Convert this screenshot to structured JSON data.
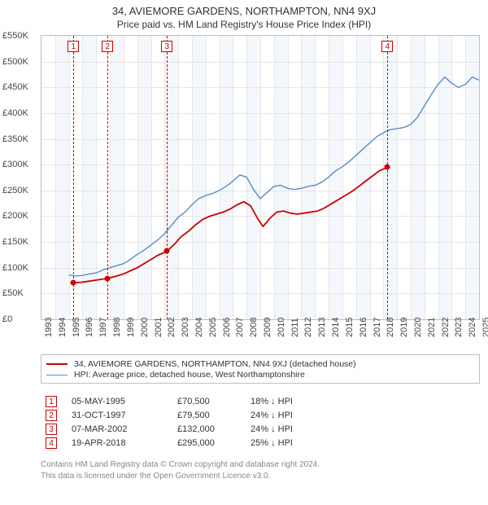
{
  "title": "34, AVIEMORE GARDENS, NORTHAMPTON, NN4 9XJ",
  "subtitle": "Price paid vs. HM Land Registry's House Price Index (HPI)",
  "chart": {
    "type": "line",
    "background_color": "#ffffff",
    "grid_color": "#e6e6e6",
    "band_color": "#f4f7fb",
    "border_color": "#bfbfbf",
    "ylim": [
      0,
      550000
    ],
    "ytick_step": 50000,
    "ytick_labels": [
      "£0",
      "£50K",
      "£100K",
      "£150K",
      "£200K",
      "£250K",
      "£300K",
      "£350K",
      "£400K",
      "£450K",
      "£500K",
      "£550K"
    ],
    "xlim": [
      1993,
      2025
    ],
    "xtick_step": 1,
    "xtick_labels": [
      "1993",
      "1994",
      "1995",
      "1996",
      "1997",
      "1998",
      "1999",
      "2000",
      "2001",
      "2002",
      "2003",
      "2004",
      "2005",
      "2006",
      "2007",
      "2008",
      "2009",
      "2010",
      "2011",
      "2012",
      "2013",
      "2014",
      "2015",
      "2016",
      "2017",
      "2018",
      "2019",
      "2020",
      "2021",
      "2022",
      "2023",
      "2024",
      "2025"
    ],
    "band_years": [
      1994,
      1996,
      1998,
      2000,
      2002,
      2004,
      2006,
      2008,
      2010,
      2012,
      2014,
      2016,
      2018,
      2020,
      2022,
      2024
    ],
    "series": [
      {
        "name": "hpi",
        "label": "HPI: Average price, detached house, West Northamptonshire",
        "color": "#5b8cc6",
        "width": 1.4,
        "points": [
          [
            1995.0,
            86000
          ],
          [
            1995.5,
            84000
          ],
          [
            1996.0,
            85000
          ],
          [
            1996.5,
            88000
          ],
          [
            1997.0,
            90000
          ],
          [
            1997.5,
            96000
          ],
          [
            1998.0,
            100000
          ],
          [
            1998.5,
            104000
          ],
          [
            1999.0,
            108000
          ],
          [
            1999.5,
            116000
          ],
          [
            2000.0,
            126000
          ],
          [
            2000.5,
            134000
          ],
          [
            2001.0,
            144000
          ],
          [
            2001.5,
            154000
          ],
          [
            2002.0,
            166000
          ],
          [
            2002.5,
            182000
          ],
          [
            2003.0,
            198000
          ],
          [
            2003.5,
            208000
          ],
          [
            2004.0,
            222000
          ],
          [
            2004.5,
            234000
          ],
          [
            2005.0,
            240000
          ],
          [
            2005.5,
            244000
          ],
          [
            2006.0,
            250000
          ],
          [
            2006.5,
            258000
          ],
          [
            2007.0,
            268000
          ],
          [
            2007.5,
            280000
          ],
          [
            2008.0,
            276000
          ],
          [
            2008.5,
            252000
          ],
          [
            2009.0,
            234000
          ],
          [
            2009.5,
            246000
          ],
          [
            2010.0,
            258000
          ],
          [
            2010.5,
            260000
          ],
          [
            2011.0,
            254000
          ],
          [
            2011.5,
            252000
          ],
          [
            2012.0,
            254000
          ],
          [
            2012.5,
            258000
          ],
          [
            2013.0,
            260000
          ],
          [
            2013.5,
            266000
          ],
          [
            2014.0,
            276000
          ],
          [
            2014.5,
            288000
          ],
          [
            2015.0,
            296000
          ],
          [
            2015.5,
            306000
          ],
          [
            2016.0,
            318000
          ],
          [
            2016.5,
            330000
          ],
          [
            2017.0,
            342000
          ],
          [
            2017.5,
            354000
          ],
          [
            2018.0,
            362000
          ],
          [
            2018.5,
            368000
          ],
          [
            2019.0,
            370000
          ],
          [
            2019.5,
            372000
          ],
          [
            2020.0,
            378000
          ],
          [
            2020.5,
            392000
          ],
          [
            2021.0,
            414000
          ],
          [
            2021.5,
            436000
          ],
          [
            2022.0,
            456000
          ],
          [
            2022.5,
            470000
          ],
          [
            2023.0,
            458000
          ],
          [
            2023.5,
            450000
          ],
          [
            2024.0,
            456000
          ],
          [
            2024.5,
            470000
          ],
          [
            2025.0,
            464000
          ]
        ]
      },
      {
        "name": "subject",
        "label": "34, AVIEMORE GARDENS, NORTHAMPTON, NN4 9XJ (detached house)",
        "color": "#cc0000",
        "width": 1.8,
        "points": [
          [
            1995.34,
            70500
          ],
          [
            1996.0,
            72000
          ],
          [
            1996.5,
            74000
          ],
          [
            1997.0,
            76000
          ],
          [
            1997.83,
            79500
          ],
          [
            1998.5,
            84000
          ],
          [
            1999.0,
            88000
          ],
          [
            1999.5,
            94000
          ],
          [
            2000.0,
            100000
          ],
          [
            2000.5,
            108000
          ],
          [
            2001.0,
            116000
          ],
          [
            2001.5,
            124000
          ],
          [
            2002.18,
            132000
          ],
          [
            2002.8,
            148000
          ],
          [
            2003.2,
            160000
          ],
          [
            2003.8,
            172000
          ],
          [
            2004.3,
            184000
          ],
          [
            2004.8,
            194000
          ],
          [
            2005.3,
            200000
          ],
          [
            2005.8,
            204000
          ],
          [
            2006.3,
            208000
          ],
          [
            2006.8,
            214000
          ],
          [
            2007.3,
            222000
          ],
          [
            2007.8,
            228000
          ],
          [
            2008.3,
            220000
          ],
          [
            2008.8,
            196000
          ],
          [
            2009.2,
            180000
          ],
          [
            2009.7,
            196000
          ],
          [
            2010.2,
            208000
          ],
          [
            2010.7,
            210000
          ],
          [
            2011.2,
            206000
          ],
          [
            2011.7,
            204000
          ],
          [
            2012.2,
            206000
          ],
          [
            2012.7,
            208000
          ],
          [
            2013.2,
            210000
          ],
          [
            2013.7,
            216000
          ],
          [
            2014.2,
            224000
          ],
          [
            2014.7,
            232000
          ],
          [
            2015.2,
            240000
          ],
          [
            2015.7,
            248000
          ],
          [
            2016.2,
            258000
          ],
          [
            2016.7,
            268000
          ],
          [
            2017.2,
            278000
          ],
          [
            2017.7,
            288000
          ],
          [
            2018.3,
            295000
          ]
        ]
      }
    ],
    "sales": [
      {
        "n": "1",
        "year": 1995.34,
        "price": 70500
      },
      {
        "n": "2",
        "year": 1997.83,
        "price": 79500
      },
      {
        "n": "3",
        "year": 2002.18,
        "price": 132000
      },
      {
        "n": "4",
        "year": 2018.3,
        "price": 295000
      }
    ],
    "label_fontsize": 11,
    "text_color": "#444444"
  },
  "legend": {
    "rows": [
      {
        "color": "#cc0000",
        "width": 2,
        "label": "34, AVIEMORE GARDENS, NORTHAMPTON, NN4 9XJ (detached house)"
      },
      {
        "color": "#5b8cc6",
        "width": 1.4,
        "label": "HPI: Average price, detached house, West Northamptonshire"
      }
    ]
  },
  "events": [
    {
      "n": "1",
      "date": "05-MAY-1995",
      "price": "£70,500",
      "delta": "18% ↓ HPI"
    },
    {
      "n": "2",
      "date": "31-OCT-1997",
      "price": "£79,500",
      "delta": "24% ↓ HPI"
    },
    {
      "n": "3",
      "date": "07-MAR-2002",
      "price": "£132,000",
      "delta": "24% ↓ HPI"
    },
    {
      "n": "4",
      "date": "19-APR-2018",
      "price": "£295,000",
      "delta": "25% ↓ HPI"
    }
  ],
  "footer": {
    "line1": "Contains HM Land Registry data © Crown copyright and database right 2024.",
    "line2": "This data is licensed under the Open Government Licence v3.0."
  }
}
